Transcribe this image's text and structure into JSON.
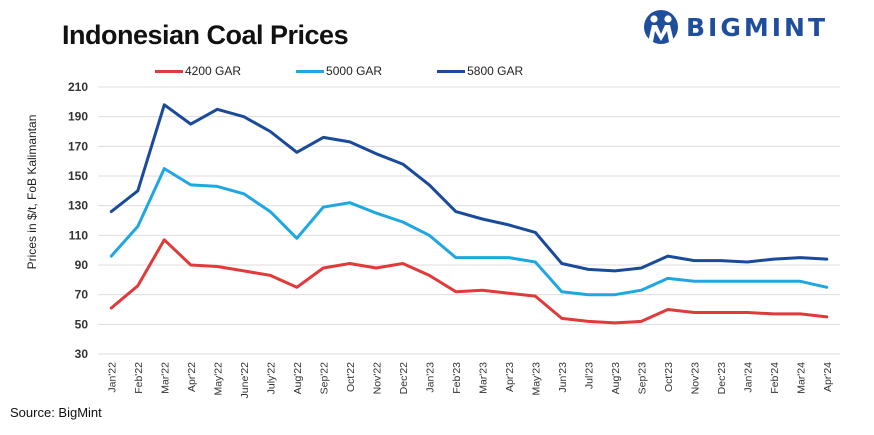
{
  "header": {
    "title": "Indonesian Coal Prices",
    "brand": "BIGMINT"
  },
  "footer": {
    "source": "Source: BigMint"
  },
  "colors": {
    "brand": "#1f4e9c",
    "grid": "#dddddd"
  },
  "chart_data": {
    "type": "line",
    "title": "Indonesian Coal Prices",
    "xlabel": "",
    "ylabel": "Prices in $/t, FoB Kalimantan",
    "ylim": [
      30,
      210
    ],
    "yticks": [
      30,
      50,
      70,
      90,
      110,
      130,
      150,
      170,
      190,
      210
    ],
    "grid": "horizontal",
    "legend": "top",
    "categories": [
      "Jan'22",
      "Feb'22",
      "Mar'22",
      "Apr'22",
      "May'22",
      "June'22",
      "July'22",
      "Aug'22",
      "Sep'22",
      "Oct'22",
      "Nov'22",
      "Dec'22",
      "Jan'23",
      "Feb'23",
      "Mar'23",
      "Apr'23",
      "May'23",
      "Jun'23",
      "Jul'23",
      "Aug'23",
      "Sep'23",
      "Oct'23",
      "Nov'23",
      "Dec'23",
      "Jan'24",
      "Feb'24",
      "Mar'24",
      "Apr'24"
    ],
    "series": [
      {
        "name": "4200 GAR",
        "color": "#e03a3a",
        "values": [
          61,
          76,
          107,
          90,
          89,
          86,
          83,
          75,
          88,
          91,
          88,
          91,
          83,
          72,
          73,
          71,
          69,
          54,
          52,
          51,
          52,
          60,
          58,
          58,
          58,
          57,
          57,
          55
        ]
      },
      {
        "name": "5000 GAR",
        "color": "#1ea7e1",
        "values": [
          96,
          116,
          155,
          144,
          143,
          138,
          126,
          108,
          129,
          132,
          125,
          119,
          110,
          95,
          95,
          95,
          92,
          72,
          70,
          70,
          73,
          81,
          79,
          79,
          79,
          79,
          79,
          75
        ]
      },
      {
        "name": "5800 GAR",
        "color": "#1a4a9a",
        "values": [
          126,
          140,
          198,
          185,
          195,
          190,
          180,
          166,
          176,
          173,
          165,
          158,
          144,
          126,
          121,
          117,
          112,
          91,
          87,
          86,
          88,
          96,
          93,
          93,
          92,
          94,
          95,
          94
        ]
      }
    ]
  }
}
